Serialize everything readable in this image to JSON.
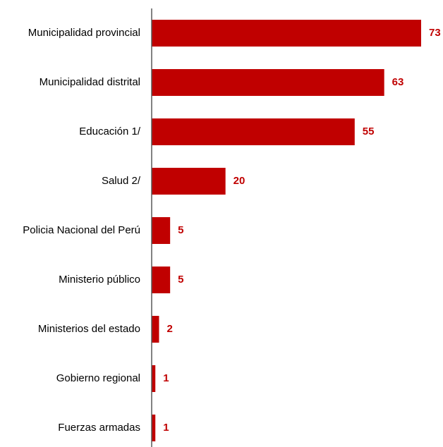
{
  "chart_data": {
    "type": "bar",
    "orientation": "horizontal",
    "categories": [
      "Municipalidad provincial",
      "Municipalidad distrital",
      "Educación 1/",
      "Salud 2/",
      "Policia Nacional del Perú",
      "Ministerio público",
      "Ministerios del estado",
      "Gobierno regional",
      "Fuerzas armadas"
    ],
    "values": [
      73,
      63,
      55,
      20,
      5,
      5,
      2,
      1,
      1
    ],
    "title": "",
    "xlabel": "",
    "ylabel": "",
    "xlim": [
      0,
      73
    ],
    "grid": false,
    "legend": "none",
    "data_labels": true
  },
  "colors": {
    "bar": "#c00000",
    "value_label": "#c00000",
    "axis": "#595959",
    "text": "#000000"
  }
}
